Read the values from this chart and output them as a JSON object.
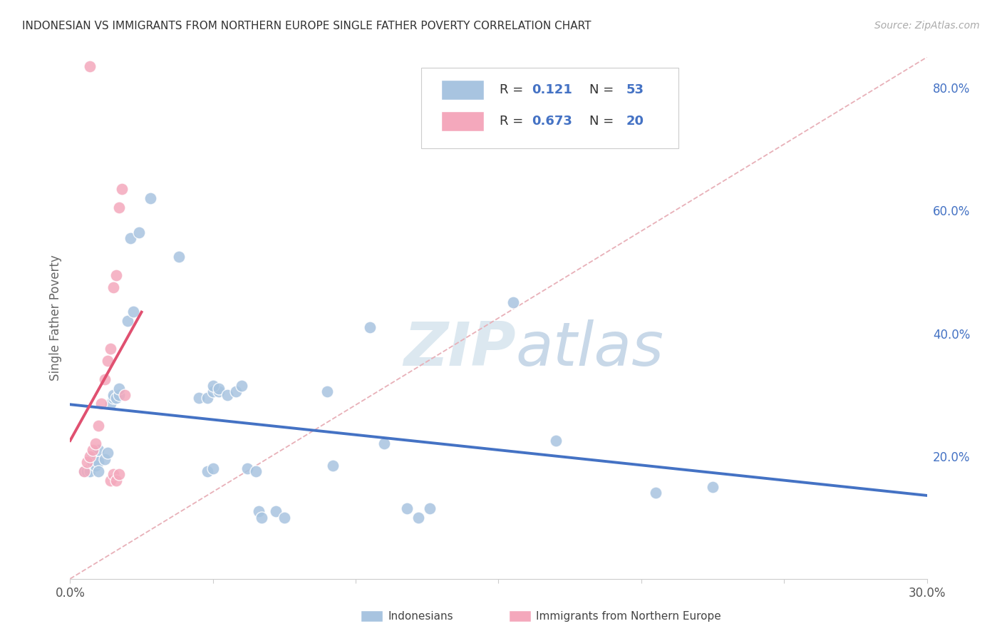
{
  "title": "INDONESIAN VS IMMIGRANTS FROM NORTHERN EUROPE SINGLE FATHER POVERTY CORRELATION CHART",
  "source": "Source: ZipAtlas.com",
  "ylabel": "Single Father Poverty",
  "xlim": [
    0.0,
    0.3
  ],
  "ylim": [
    0.0,
    0.85
  ],
  "indonesian_R": "0.121",
  "indonesian_N": "53",
  "northern_europe_R": "0.673",
  "northern_europe_N": "20",
  "indonesian_color": "#a8c4e0",
  "northern_europe_color": "#f4a8bc",
  "trendline_indonesian_color": "#4472c4",
  "trendline_northern_europe_color": "#e05070",
  "diagonal_color": "#e8b0b8",
  "blue_text_color": "#4472c4",
  "background_color": "#ffffff",
  "grid_color": "#dce8f0",
  "watermark_color": "#dce8f0",
  "indonesian_scatter": [
    [
      0.005,
      0.175
    ],
    [
      0.006,
      0.175
    ],
    [
      0.007,
      0.18
    ],
    [
      0.007,
      0.175
    ],
    [
      0.008,
      0.2
    ],
    [
      0.008,
      0.19
    ],
    [
      0.009,
      0.195
    ],
    [
      0.009,
      0.185
    ],
    [
      0.01,
      0.21
    ],
    [
      0.01,
      0.19
    ],
    [
      0.01,
      0.175
    ],
    [
      0.012,
      0.195
    ],
    [
      0.013,
      0.205
    ],
    [
      0.014,
      0.285
    ],
    [
      0.015,
      0.295
    ],
    [
      0.015,
      0.3
    ],
    [
      0.016,
      0.295
    ],
    [
      0.017,
      0.3
    ],
    [
      0.017,
      0.31
    ],
    [
      0.02,
      0.42
    ],
    [
      0.022,
      0.435
    ],
    [
      0.021,
      0.555
    ],
    [
      0.024,
      0.565
    ],
    [
      0.028,
      0.62
    ],
    [
      0.038,
      0.525
    ],
    [
      0.045,
      0.295
    ],
    [
      0.048,
      0.295
    ],
    [
      0.05,
      0.305
    ],
    [
      0.052,
      0.305
    ],
    [
      0.05,
      0.315
    ],
    [
      0.052,
      0.31
    ],
    [
      0.048,
      0.175
    ],
    [
      0.05,
      0.18
    ],
    [
      0.055,
      0.3
    ],
    [
      0.058,
      0.305
    ],
    [
      0.06,
      0.315
    ],
    [
      0.062,
      0.18
    ],
    [
      0.065,
      0.175
    ],
    [
      0.066,
      0.11
    ],
    [
      0.067,
      0.1
    ],
    [
      0.072,
      0.11
    ],
    [
      0.075,
      0.1
    ],
    [
      0.09,
      0.305
    ],
    [
      0.092,
      0.185
    ],
    [
      0.105,
      0.41
    ],
    [
      0.11,
      0.22
    ],
    [
      0.118,
      0.115
    ],
    [
      0.122,
      0.1
    ],
    [
      0.126,
      0.115
    ],
    [
      0.155,
      0.45
    ],
    [
      0.17,
      0.225
    ],
    [
      0.205,
      0.14
    ],
    [
      0.225,
      0.15
    ]
  ],
  "northern_europe_scatter": [
    [
      0.005,
      0.175
    ],
    [
      0.006,
      0.19
    ],
    [
      0.007,
      0.2
    ],
    [
      0.008,
      0.21
    ],
    [
      0.009,
      0.22
    ],
    [
      0.01,
      0.25
    ],
    [
      0.011,
      0.285
    ],
    [
      0.012,
      0.325
    ],
    [
      0.013,
      0.355
    ],
    [
      0.014,
      0.375
    ],
    [
      0.015,
      0.475
    ],
    [
      0.016,
      0.495
    ],
    [
      0.017,
      0.605
    ],
    [
      0.018,
      0.635
    ],
    [
      0.014,
      0.16
    ],
    [
      0.015,
      0.17
    ],
    [
      0.016,
      0.16
    ],
    [
      0.017,
      0.17
    ],
    [
      0.007,
      0.835
    ],
    [
      0.019,
      0.3
    ]
  ]
}
